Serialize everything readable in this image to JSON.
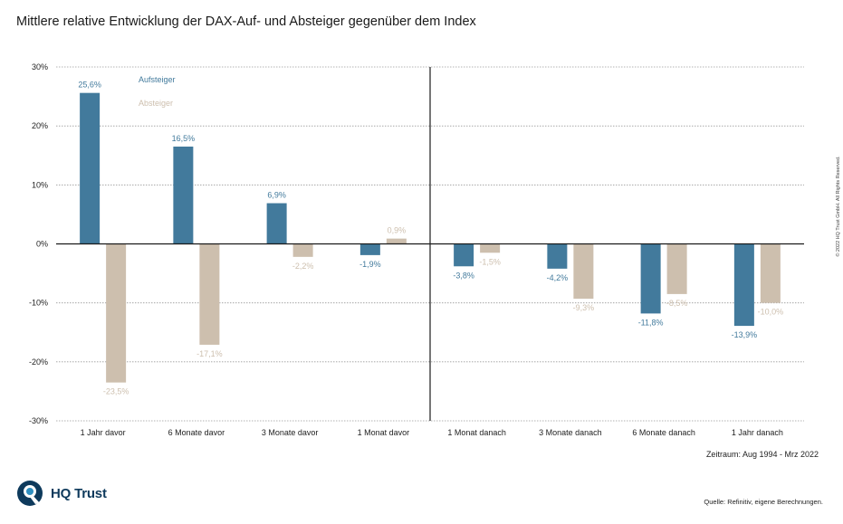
{
  "title": "Mittlere relative Entwicklung der DAX-Auf- und Absteiger gegenüber dem Index",
  "period_note": "Zeitraum: Aug 1994 - Mrz 2022",
  "source_note": "Quelle: Refinitiv, eigene Berechnungen.",
  "copyright": "© 2022 HQ Trust GmbH. All Rights Reserved.",
  "logo": {
    "text": "HQ Trust"
  },
  "colors": {
    "aufsteiger": "#427a9c",
    "absteiger": "#cdbfae",
    "logo": "#0e3a5c"
  },
  "chart_data": {
    "type": "bar",
    "title": "Mittlere relative Entwicklung der DAX-Auf- und Absteiger gegenüber dem Index",
    "categories": [
      "1 Jahr davor",
      "6 Monate davor",
      "3 Monate davor",
      "1 Monat davor",
      "1 Monat danach",
      "3 Monate danach",
      "6 Monate danach",
      "1 Jahr danach"
    ],
    "series": [
      {
        "name": "Aufsteiger",
        "values": [
          25.6,
          16.5,
          6.9,
          -1.9,
          -3.8,
          -4.2,
          -11.8,
          -13.9
        ],
        "labels": [
          "25,6%",
          "16,5%",
          "6,9%",
          "-1,9%",
          "-3,8%",
          "-4,2%",
          "-11,8%",
          "-13,9%"
        ]
      },
      {
        "name": "Absteiger",
        "values": [
          -23.5,
          -17.1,
          -2.2,
          0.9,
          -1.5,
          -9.3,
          -8.5,
          -10.0
        ],
        "labels": [
          "-23,5%",
          "-17,1%",
          "-2,2%",
          "0,9%",
          "-1,5%",
          "-9,3%",
          "-8,5%",
          "-10,0%"
        ]
      }
    ],
    "ylim": [
      -30,
      30
    ],
    "yticks": [
      30,
      20,
      10,
      0,
      -10,
      -20,
      -30
    ],
    "ytick_labels": [
      "30%",
      "20%",
      "10%",
      "0%",
      "-10%",
      "-20%",
      "-30%"
    ],
    "grid": true,
    "divider_after_category": 4,
    "legend_position": "top-left"
  }
}
